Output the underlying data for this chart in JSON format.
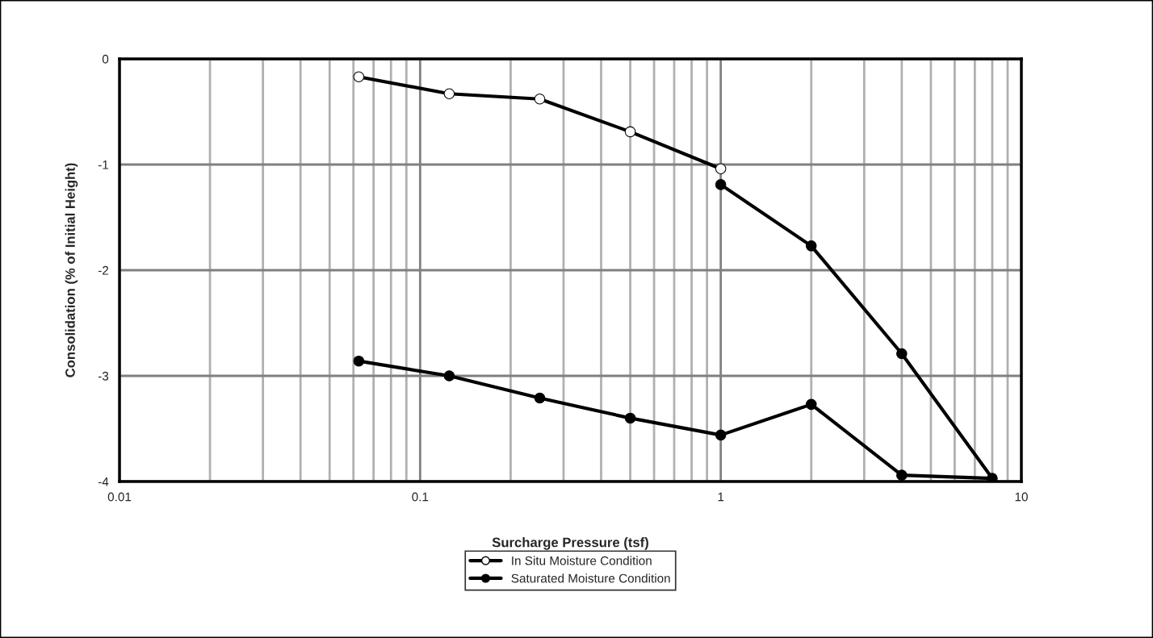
{
  "chart_data": {
    "type": "line",
    "xlabel": "Surcharge Pressure (tsf)",
    "ylabel": "Consolidation (% of Initial Height)",
    "log": "x",
    "xlim": [
      0.01,
      10
    ],
    "xticks": [
      0.01,
      0.1,
      1,
      10
    ],
    "ylim": [
      -4,
      0
    ],
    "yticks": [
      -4,
      -3,
      -2,
      -1,
      0
    ],
    "grid": true,
    "legend": "bottom",
    "line_style": "solid",
    "series": [
      {
        "name": "In Situ Moisture Condition",
        "color": "#000000",
        "marker": "circle",
        "x": [
          0.0625,
          0.125,
          0.25,
          0.5,
          1
        ],
        "values": [
          -0.17,
          -0.33,
          -0.38,
          -0.69,
          -1.04
        ]
      },
      {
        "name": "Saturated Moisture Condition",
        "color": "#000000",
        "marker": "circle",
        "x": [
          1,
          2,
          4,
          8,
          4,
          2,
          1,
          0.5,
          0.25,
          0.125,
          0.0625
        ],
        "values": [
          -1.19,
          -1.77,
          -2.79,
          -3.97,
          -3.94,
          -3.27,
          -3.56,
          -3.4,
          -3.21,
          -3.0,
          -2.86
        ]
      }
    ]
  }
}
